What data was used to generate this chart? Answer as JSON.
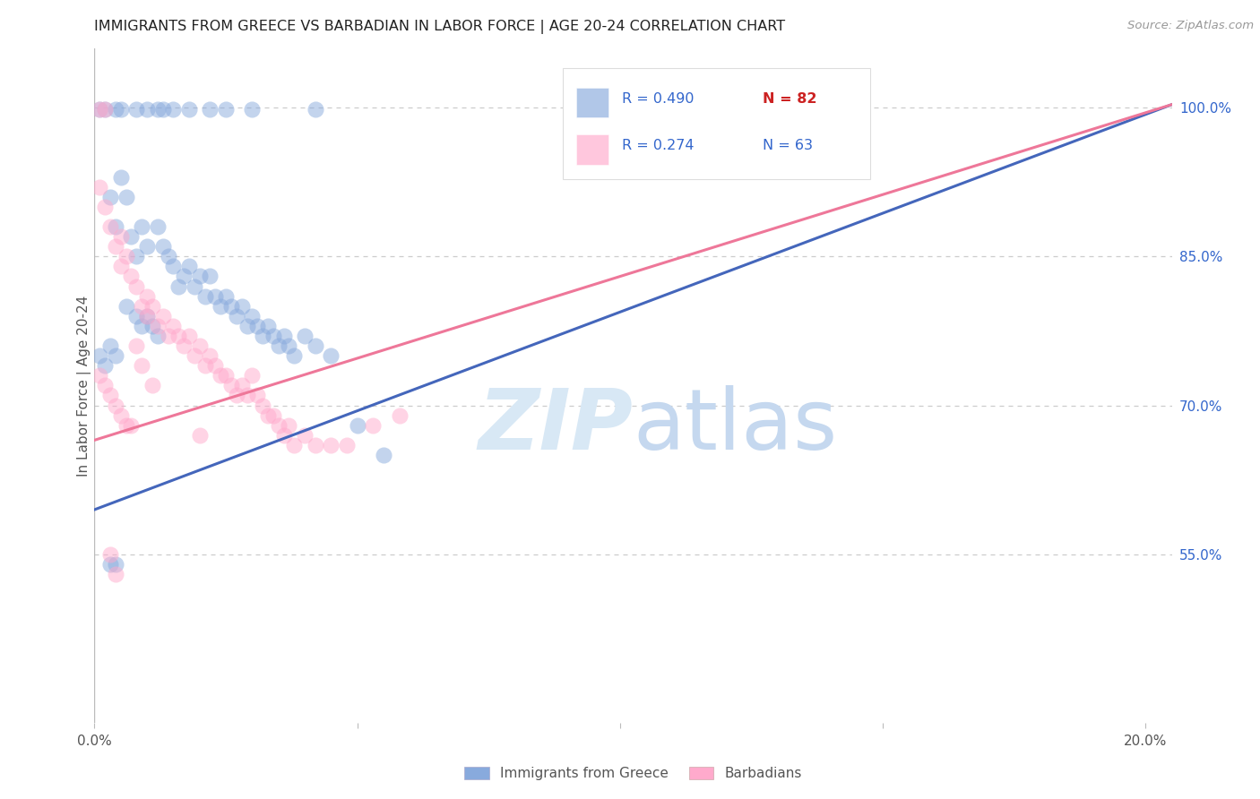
{
  "title": "IMMIGRANTS FROM GREECE VS BARBADIAN IN LABOR FORCE | AGE 20-24 CORRELATION CHART",
  "source": "Source: ZipAtlas.com",
  "ylabel": "In Labor Force | Age 20-24",
  "right_yticks": [
    0.55,
    0.7,
    0.85,
    1.0
  ],
  "right_yticklabels": [
    "55.0%",
    "70.0%",
    "85.0%",
    "100.0%"
  ],
  "xlim": [
    0.0,
    0.205
  ],
  "ylim": [
    0.38,
    1.06
  ],
  "blue_color": "#88AADD",
  "pink_color": "#FFAACC",
  "line_blue": "#4466BB",
  "line_pink": "#EE7799",
  "legend_r_color_blue": "#3366CC",
  "legend_n_color_blue": "#CC2222",
  "legend_r_color_pink": "#EE7799",
  "legend_n_color_pink": "#3366CC",
  "background_color": "#FFFFFF",
  "grid_color": "#CCCCCC",
  "axis_color": "#BBBBBB",
  "right_tick_color": "#3366CC",
  "blue_line_x": [
    0.0,
    0.205
  ],
  "blue_line_y": [
    0.595,
    1.003
  ],
  "pink_line_x": [
    0.0,
    0.205
  ],
  "pink_line_y": [
    0.665,
    1.003
  ],
  "blue_scatter": [
    [
      0.001,
      0.998
    ],
    [
      0.002,
      0.998
    ],
    [
      0.004,
      0.998
    ],
    [
      0.005,
      0.998
    ],
    [
      0.008,
      0.998
    ],
    [
      0.01,
      0.998
    ],
    [
      0.012,
      0.998
    ],
    [
      0.013,
      0.998
    ],
    [
      0.015,
      0.998
    ],
    [
      0.018,
      0.998
    ],
    [
      0.022,
      0.998
    ],
    [
      0.025,
      0.998
    ],
    [
      0.03,
      0.998
    ],
    [
      0.042,
      0.998
    ],
    [
      0.14,
      0.998
    ],
    [
      0.145,
      0.998
    ],
    [
      0.003,
      0.91
    ],
    [
      0.004,
      0.88
    ],
    [
      0.005,
      0.93
    ],
    [
      0.006,
      0.91
    ],
    [
      0.007,
      0.87
    ],
    [
      0.008,
      0.85
    ],
    [
      0.009,
      0.88
    ],
    [
      0.01,
      0.86
    ],
    [
      0.012,
      0.88
    ],
    [
      0.013,
      0.86
    ],
    [
      0.014,
      0.85
    ],
    [
      0.015,
      0.84
    ],
    [
      0.016,
      0.82
    ],
    [
      0.017,
      0.83
    ],
    [
      0.018,
      0.84
    ],
    [
      0.019,
      0.82
    ],
    [
      0.02,
      0.83
    ],
    [
      0.021,
      0.81
    ],
    [
      0.022,
      0.83
    ],
    [
      0.023,
      0.81
    ],
    [
      0.024,
      0.8
    ],
    [
      0.025,
      0.81
    ],
    [
      0.026,
      0.8
    ],
    [
      0.027,
      0.79
    ],
    [
      0.028,
      0.8
    ],
    [
      0.029,
      0.78
    ],
    [
      0.03,
      0.79
    ],
    [
      0.031,
      0.78
    ],
    [
      0.032,
      0.77
    ],
    [
      0.033,
      0.78
    ],
    [
      0.034,
      0.77
    ],
    [
      0.035,
      0.76
    ],
    [
      0.036,
      0.77
    ],
    [
      0.037,
      0.76
    ],
    [
      0.038,
      0.75
    ],
    [
      0.04,
      0.77
    ],
    [
      0.042,
      0.76
    ],
    [
      0.045,
      0.75
    ],
    [
      0.006,
      0.8
    ],
    [
      0.008,
      0.79
    ],
    [
      0.009,
      0.78
    ],
    [
      0.01,
      0.79
    ],
    [
      0.011,
      0.78
    ],
    [
      0.012,
      0.77
    ],
    [
      0.003,
      0.76
    ],
    [
      0.004,
      0.75
    ],
    [
      0.003,
      0.54
    ],
    [
      0.004,
      0.54
    ],
    [
      0.05,
      0.68
    ],
    [
      0.055,
      0.65
    ],
    [
      0.001,
      0.75
    ],
    [
      0.002,
      0.74
    ]
  ],
  "pink_scatter": [
    [
      0.001,
      0.998
    ],
    [
      0.002,
      0.998
    ],
    [
      0.001,
      0.92
    ],
    [
      0.002,
      0.9
    ],
    [
      0.003,
      0.88
    ],
    [
      0.004,
      0.86
    ],
    [
      0.005,
      0.87
    ],
    [
      0.005,
      0.84
    ],
    [
      0.006,
      0.85
    ],
    [
      0.007,
      0.83
    ],
    [
      0.008,
      0.82
    ],
    [
      0.009,
      0.8
    ],
    [
      0.01,
      0.81
    ],
    [
      0.01,
      0.79
    ],
    [
      0.011,
      0.8
    ],
    [
      0.012,
      0.78
    ],
    [
      0.013,
      0.79
    ],
    [
      0.014,
      0.77
    ],
    [
      0.015,
      0.78
    ],
    [
      0.016,
      0.77
    ],
    [
      0.017,
      0.76
    ],
    [
      0.018,
      0.77
    ],
    [
      0.019,
      0.75
    ],
    [
      0.02,
      0.76
    ],
    [
      0.021,
      0.74
    ],
    [
      0.022,
      0.75
    ],
    [
      0.023,
      0.74
    ],
    [
      0.024,
      0.73
    ],
    [
      0.025,
      0.73
    ],
    [
      0.026,
      0.72
    ],
    [
      0.027,
      0.71
    ],
    [
      0.028,
      0.72
    ],
    [
      0.029,
      0.71
    ],
    [
      0.03,
      0.73
    ],
    [
      0.031,
      0.71
    ],
    [
      0.032,
      0.7
    ],
    [
      0.033,
      0.69
    ],
    [
      0.034,
      0.69
    ],
    [
      0.035,
      0.68
    ],
    [
      0.036,
      0.67
    ],
    [
      0.037,
      0.68
    ],
    [
      0.038,
      0.66
    ],
    [
      0.04,
      0.67
    ],
    [
      0.042,
      0.66
    ],
    [
      0.045,
      0.66
    ],
    [
      0.048,
      0.66
    ],
    [
      0.053,
      0.68
    ],
    [
      0.058,
      0.69
    ],
    [
      0.001,
      0.73
    ],
    [
      0.002,
      0.72
    ],
    [
      0.003,
      0.71
    ],
    [
      0.004,
      0.7
    ],
    [
      0.005,
      0.69
    ],
    [
      0.006,
      0.68
    ],
    [
      0.003,
      0.55
    ],
    [
      0.004,
      0.53
    ],
    [
      0.02,
      0.67
    ],
    [
      0.007,
      0.68
    ],
    [
      0.008,
      0.76
    ],
    [
      0.009,
      0.74
    ],
    [
      0.011,
      0.72
    ]
  ]
}
